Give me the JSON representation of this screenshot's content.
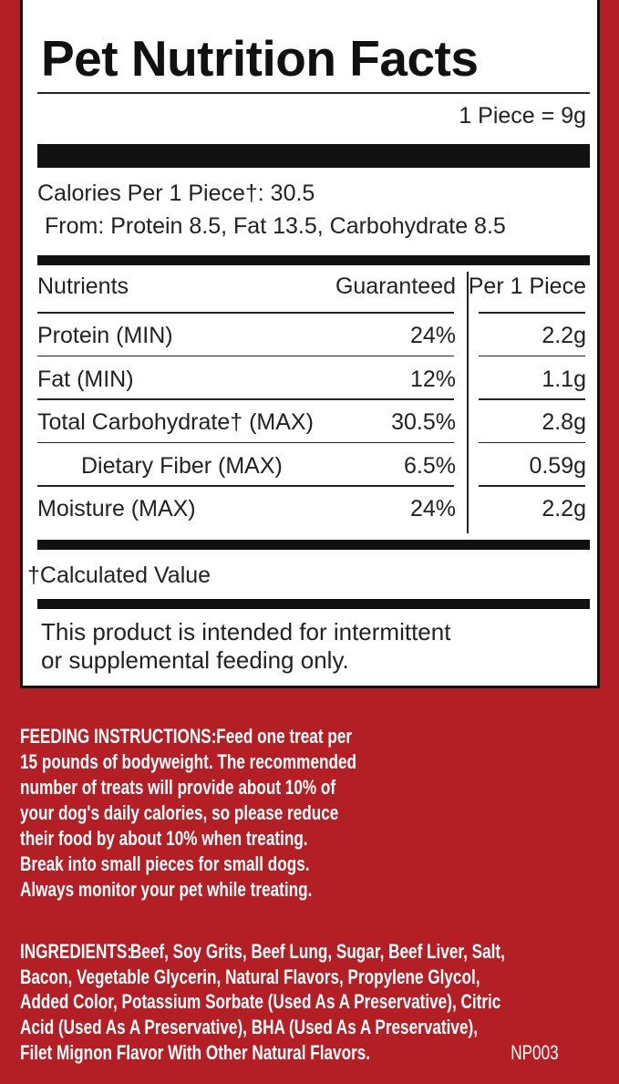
{
  "panel": {
    "title": "Pet Nutrition Facts",
    "serving": "1 Piece = 9g",
    "calories": "Calories Per 1 Piece†: 30.5",
    "calories_from": "From: Protein 8.5, Fat 13.5, Carbohydrate 8.5",
    "table": {
      "header": [
        "Nutrients",
        "Guaranteed",
        "Per 1 Piece"
      ],
      "rows": [
        [
          "Protein (MIN)",
          "24%",
          "2.2g"
        ],
        [
          "Fat (MIN)",
          "12%",
          "1.1g"
        ],
        [
          "Total Carbohydrate† (MAX)",
          "30.5%",
          "2.8g"
        ],
        [
          "Dietary Fiber (MAX)",
          "6.5%",
          "0.59g"
        ],
        [
          "Moisture (MAX)",
          "24%",
          "2.2g"
        ]
      ]
    },
    "footnote": "†Calculated Value",
    "statement": [
      "This product is intended for intermittent",
      "or supplemental feeding only."
    ]
  },
  "feeding": {
    "label": "FEEDING INSTRUCTIONS:",
    "lines": [
      "Feed one treat per",
      "15 pounds of bodyweight. The recommended",
      "number of treats will provide about 10% of",
      "your dog's daily calories, so please reduce",
      "their food by about 10% when treating.",
      "Break into small pieces for small dogs.",
      "Always monitor your pet while treating."
    ]
  },
  "ingredients": {
    "label": "INGREDIENTS:",
    "lines": [
      "Beef, Soy Grits, Beef Lung, Sugar, Beef Liver, Salt,",
      "Bacon, Vegetable Glycerin, Natural Flavors, Propylene Glycol,",
      "Added Color, Potassium Sorbate (Used As A Preservative), Citric",
      "Acid (Used As A Preservative), BHA (Used As A Preservative),",
      "Filet Mignon Flavor With Other Natural Flavors."
    ],
    "code": "NP003"
  }
}
